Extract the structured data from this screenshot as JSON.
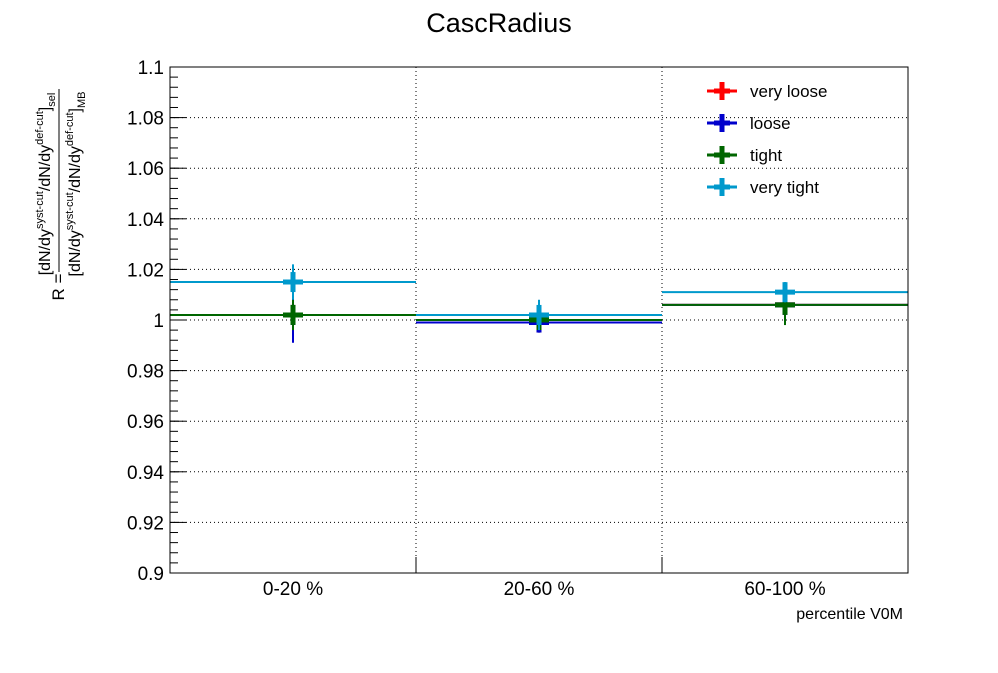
{
  "chart_data": {
    "type": "scatter",
    "title": "CascRadius",
    "xlabel": "percentile V0M",
    "ylabel": {
      "prefix": "R =",
      "numerator": "[dN/dy^{syst-cut}/dN/dy^{def-cut}]_{sel}",
      "denominator": "[dN/dy^{syst-cut}/dN/dy^{def-cut}]_{MB}"
    },
    "categories": [
      "0-20 %",
      "20-60 %",
      "60-100 %"
    ],
    "ylim": [
      0.9,
      1.1
    ],
    "yticks": [
      "0.9",
      "0.92",
      "0.94",
      "0.96",
      "0.98",
      "1",
      "1.02",
      "1.04",
      "1.06",
      "1.08",
      "1.1"
    ],
    "grid": true,
    "legend_position": "top-right",
    "series": [
      {
        "name": "very loose",
        "color": "#ff0000",
        "values": [
          1.002,
          0.999,
          1.006
        ],
        "errors": [
          0.004,
          0.003,
          0.004
        ]
      },
      {
        "name": "loose",
        "color": "#0000cc",
        "values": [
          1.002,
          0.999,
          1.006
        ],
        "errors": [
          0.011,
          0.004,
          0.006
        ]
      },
      {
        "name": "tight",
        "color": "#006600",
        "values": [
          1.002,
          1.0,
          1.006
        ],
        "errors": [
          0.006,
          0.004,
          0.008
        ]
      },
      {
        "name": "very tight",
        "color": "#0099cc",
        "values": [
          1.015,
          1.002,
          1.011
        ],
        "errors": [
          0.007,
          0.006,
          0.004
        ]
      }
    ]
  }
}
